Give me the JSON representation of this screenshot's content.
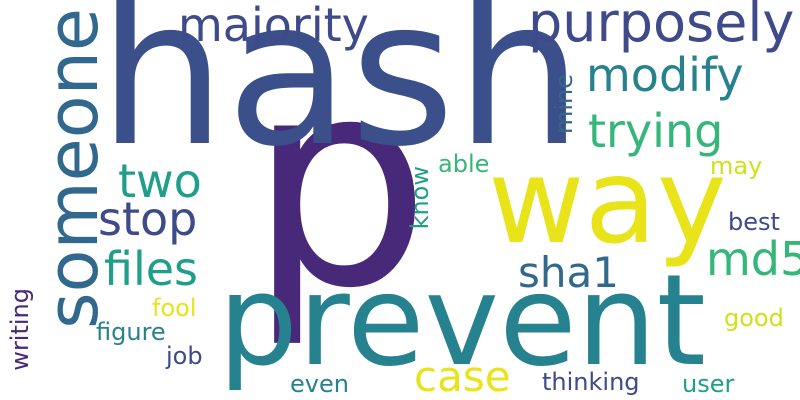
{
  "words": {
    "p": "p",
    "hash": "hash",
    "prevent": "prevent",
    "way": "way",
    "someone": "someone",
    "purposely": "purposely",
    "majority": "majority",
    "modify": "modify",
    "trying": "trying",
    "two": "two",
    "stop": "stop",
    "files": "files",
    "md5": "md5",
    "sha1": "sha1",
    "case": "case",
    "mine": "mine",
    "able": "able",
    "know": "know",
    "may": "may",
    "best": "best",
    "writing": "writing",
    "fool": "fool",
    "good": "good",
    "figure": "figure",
    "job": "job",
    "even": "even",
    "thinking": "thinking",
    "user": "user"
  },
  "palette": {
    "dark_purple": "#482878",
    "indigo": "#3b4f8a",
    "slate_blue": "#3e4a89",
    "teal": "#26828e",
    "teal_blue": "#31688e",
    "green": "#35b779",
    "sea_green": "#1f9e89",
    "yellow": "#e8e419",
    "yellow_green": "#d0e11c"
  }
}
